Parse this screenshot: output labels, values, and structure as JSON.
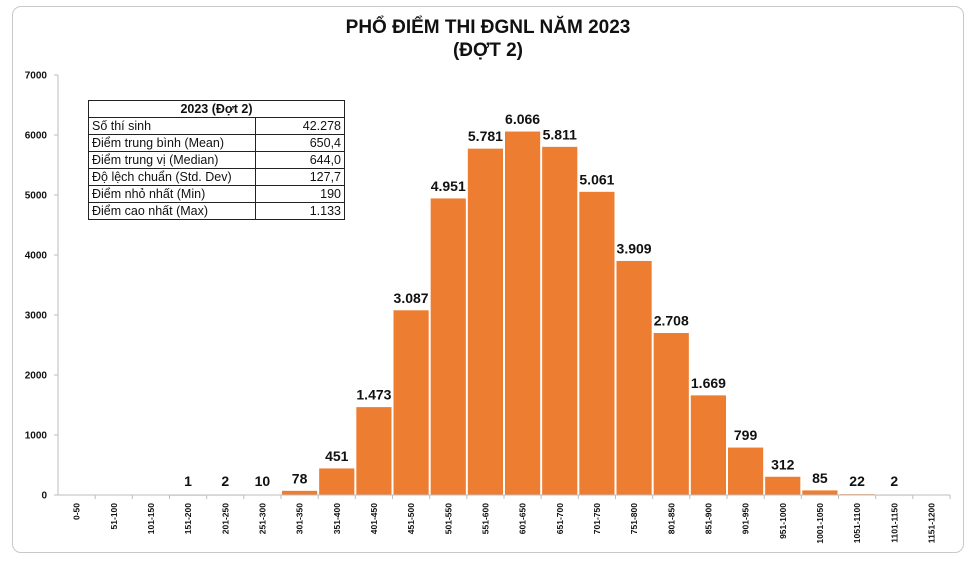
{
  "chart_data": {
    "type": "bar",
    "title_line1": "PHỔ ĐIỂM THI ĐGNL NĂM 2023",
    "title_line2": "(ĐỢT 2)",
    "categories": [
      "0-50",
      "51-100",
      "101-150",
      "151-200",
      "201-250",
      "251-300",
      "301-350",
      "351-400",
      "401-450",
      "451-500",
      "501-550",
      "551-600",
      "601-650",
      "651-700",
      "701-750",
      "751-800",
      "801-850",
      "851-900",
      "901-950",
      "951-1000",
      "1001-1050",
      "1051-1100",
      "1101-1150",
      "1151-1200"
    ],
    "values": [
      0,
      0,
      0,
      1,
      2,
      10,
      78,
      451,
      1473,
      3087,
      4951,
      5781,
      6066,
      5811,
      5061,
      3909,
      2708,
      1669,
      799,
      312,
      85,
      22,
      2,
      0
    ],
    "value_labels": [
      "",
      "",
      "",
      "1",
      "2",
      "10",
      "78",
      "451",
      "1.473",
      "3.087",
      "4.951",
      "5.781",
      "6.066",
      "5.811",
      "5.061",
      "3.909",
      "2.708",
      "1.669",
      "799",
      "312",
      "85",
      "22",
      "2",
      ""
    ],
    "ylim": [
      0,
      7000
    ],
    "yticks": [
      "0",
      "1000",
      "2000",
      "3000",
      "4000",
      "5000",
      "6000",
      "7000"
    ],
    "grid": false,
    "bar_color": "#ed7d31",
    "bar_edge_color": "#ffffff"
  },
  "stats_table": {
    "header": "2023 (Đợt 2)",
    "rows": [
      {
        "label": "Số thí sinh",
        "value": "42.278"
      },
      {
        "label": "Điểm trung bình (Mean)",
        "value": "650,4"
      },
      {
        "label": "Điểm trung vị (Median)",
        "value": "644,0"
      },
      {
        "label": "Độ lệch chuẩn (Std. Dev)",
        "value": "127,7"
      },
      {
        "label": "Điểm nhỏ nhất (Min)",
        "value": "190"
      },
      {
        "label": "Điểm cao nhất (Max)",
        "value": "1.133"
      }
    ]
  }
}
